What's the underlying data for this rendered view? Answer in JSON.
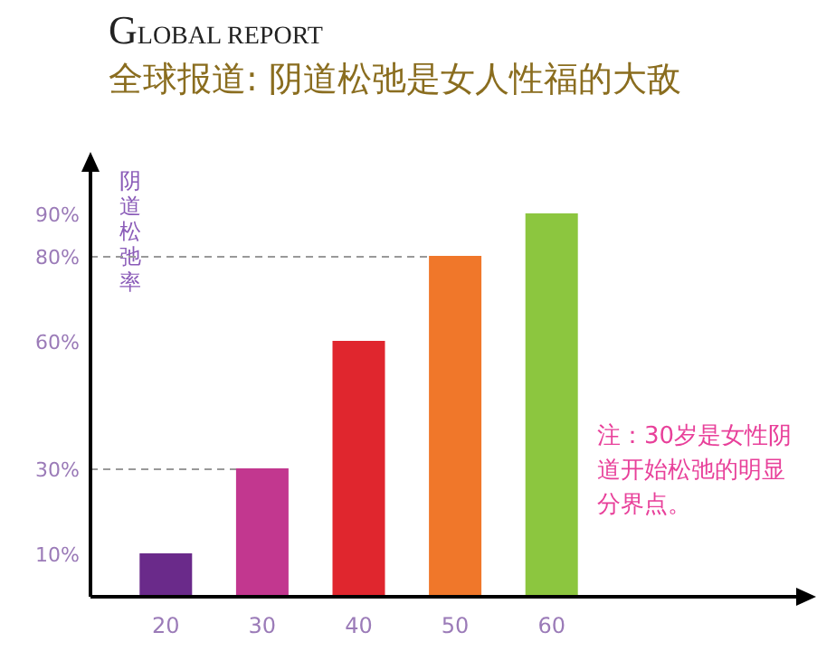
{
  "chart_data": {
    "type": "bar",
    "subtitle": "GLOBAL REPORT",
    "title": "全球报道: 阴道松弛是女人性福的大敌",
    "ylabel": "阴道松弛率",
    "categories": [
      "20",
      "30",
      "40",
      "50",
      "60"
    ],
    "values": [
      10,
      30,
      60,
      80,
      90
    ],
    "colors": [
      "#6a2a8a",
      "#c2378f",
      "#e0262e",
      "#f0772a",
      "#8cc63f"
    ],
    "ylim": [
      0,
      100
    ],
    "yticks": [
      {
        "value": 10,
        "label": "10%"
      },
      {
        "value": 30,
        "label": "30%"
      },
      {
        "value": 60,
        "label": "60%"
      },
      {
        "value": 80,
        "label": "80%"
      },
      {
        "value": 90,
        "label": "90%"
      }
    ],
    "ref_lines": [
      {
        "axis": "y",
        "value": 80,
        "label": null,
        "color": "#999999",
        "line_style": "dashed"
      },
      {
        "axis": "y",
        "value": 30,
        "label": null,
        "color": "#999999",
        "line_style": "dashed"
      }
    ],
    "annotations": [
      "注：30岁是女性阴道开始松弛的明显分界点。"
    ]
  }
}
